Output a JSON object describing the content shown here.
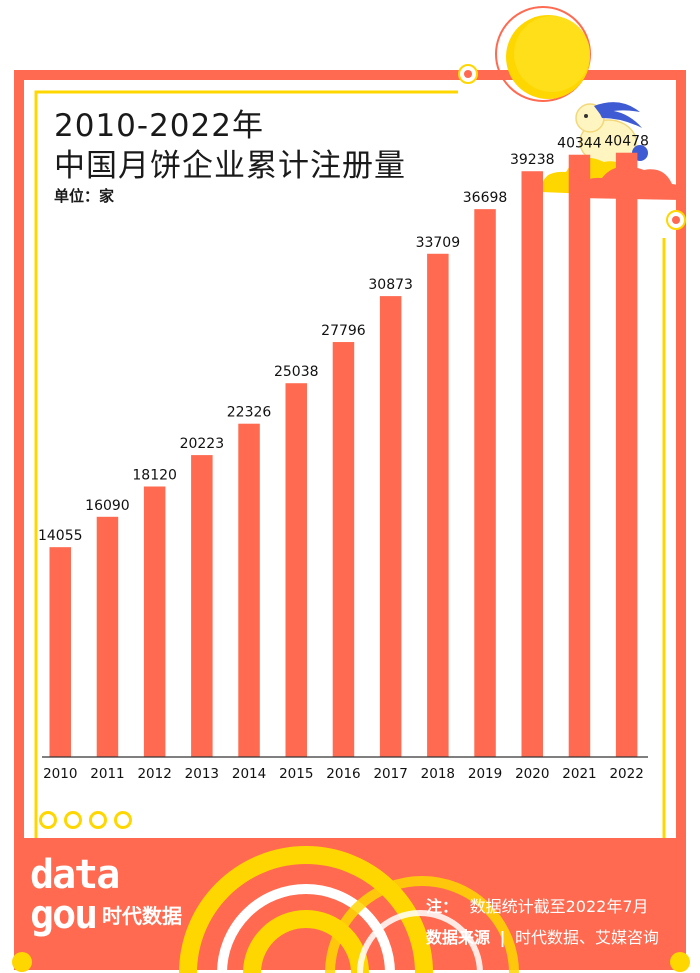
{
  "header": {
    "title_line1": "2010-2022年",
    "title_line2": "中国月饼企业累计注册量",
    "unit": "单位：家"
  },
  "footer": {
    "note_label": "注：",
    "note_text": "数据统计截至2022年7月",
    "source_label": "数据来源",
    "source_text": "时代数据、艾媒咨询",
    "logo_data": "data",
    "logo_gou": "gou",
    "logo_cn": "时代数据"
  },
  "colors": {
    "frame_orange": "#ff6a50",
    "bar": "#ff6a50",
    "accent_yellow": "#ffd700",
    "baseline": "#333333"
  },
  "chart_data": {
    "type": "bar",
    "title": "2010-2022年 中国月饼企业累计注册量",
    "subtitle": "单位：家",
    "categories": [
      "2010",
      "2011",
      "2012",
      "2013",
      "2014",
      "2015",
      "2016",
      "2017",
      "2018",
      "2019",
      "2020",
      "2021",
      "2022"
    ],
    "values": [
      14055,
      16090,
      18120,
      20223,
      22326,
      25038,
      27796,
      30873,
      33709,
      36698,
      39238,
      40344,
      40478
    ],
    "xlabel": "",
    "ylabel": "",
    "ylim": [
      0,
      42000
    ],
    "grid": false,
    "legend": "none",
    "data_labels": true
  }
}
